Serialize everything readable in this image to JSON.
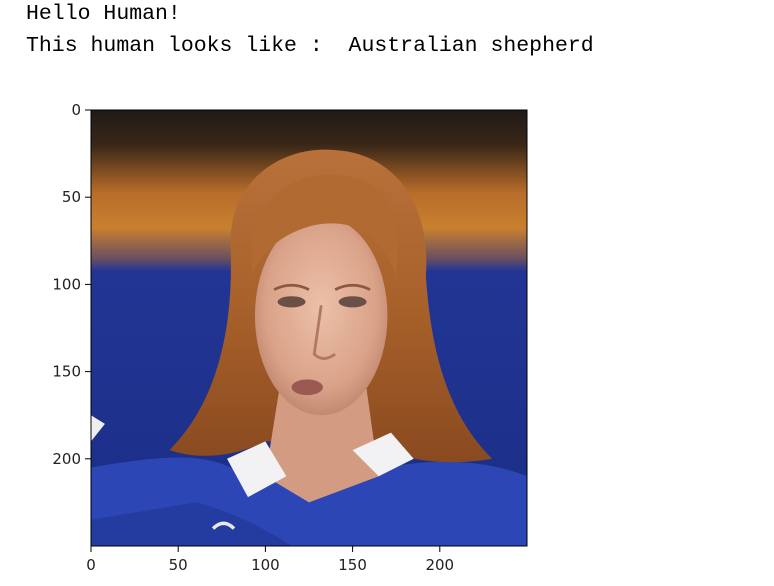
{
  "output": {
    "line1": "Hello Human!",
    "line2": "This human looks like :  Australian shepherd"
  },
  "chart_data": {
    "type": "image",
    "xlim": [
      0,
      250
    ],
    "ylim": [
      250,
      0
    ],
    "x_ticks": [
      0,
      50,
      100,
      150,
      200
    ],
    "y_ticks": [
      0,
      50,
      100,
      150,
      200
    ],
    "grid": false,
    "image_content": "photo-of-woman-with-auburn-hair-in-blue-jacket"
  },
  "colors": {
    "frame": "#000000",
    "bg_top": "#2a1f18",
    "bg_orange": "#c8782e",
    "bg_blue": "#1e3590",
    "hair": "#b36a2c",
    "skin": "#e0ae94",
    "jacket": "#2b45b8"
  }
}
